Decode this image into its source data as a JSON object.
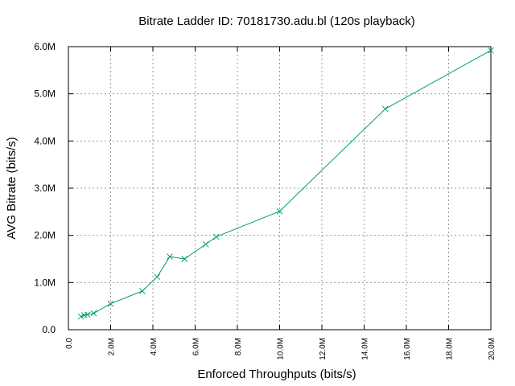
{
  "chart_data": {
    "type": "line",
    "title": "Bitrate Ladder ID: 70181730.adu.bl (120s playback)",
    "xlabel": "Enforced Throughputs (bits/s)",
    "ylabel": "AVG Bitrate (bits/s)",
    "xlim": [
      0,
      20000000
    ],
    "ylim": [
      0,
      6000000
    ],
    "x_ticks": [
      {
        "value": 0,
        "label": "0.0"
      },
      {
        "value": 2000000,
        "label": "2.0M"
      },
      {
        "value": 4000000,
        "label": "4.0M"
      },
      {
        "value": 6000000,
        "label": "6.0M"
      },
      {
        "value": 8000000,
        "label": "8.0M"
      },
      {
        "value": 10000000,
        "label": "10.0M"
      },
      {
        "value": 12000000,
        "label": "12.0M"
      },
      {
        "value": 14000000,
        "label": "14.0M"
      },
      {
        "value": 16000000,
        "label": "16.0M"
      },
      {
        "value": 18000000,
        "label": "18.0M"
      },
      {
        "value": 20000000,
        "label": "20.0M"
      }
    ],
    "y_ticks": [
      {
        "value": 0,
        "label": "0.0"
      },
      {
        "value": 1000000,
        "label": "1.0M"
      },
      {
        "value": 2000000,
        "label": "2.0M"
      },
      {
        "value": 3000000,
        "label": "3.0M"
      },
      {
        "value": 4000000,
        "label": "4.0M"
      },
      {
        "value": 5000000,
        "label": "5.0M"
      },
      {
        "value": 6000000,
        "label": "6.0M"
      }
    ],
    "grid": true,
    "marker": "x",
    "line_color": "#009e73",
    "series": [
      {
        "x": [
          600000,
          750000,
          900000,
          1200000,
          2000000,
          3500000,
          4200000,
          4800000,
          5500000,
          6500000,
          7000000,
          10000000,
          15000000,
          20000000
        ],
        "y": [
          280000,
          310000,
          320000,
          350000,
          550000,
          820000,
          1120000,
          1550000,
          1500000,
          1810000,
          1970000,
          2510000,
          4680000,
          5920000
        ]
      }
    ]
  }
}
